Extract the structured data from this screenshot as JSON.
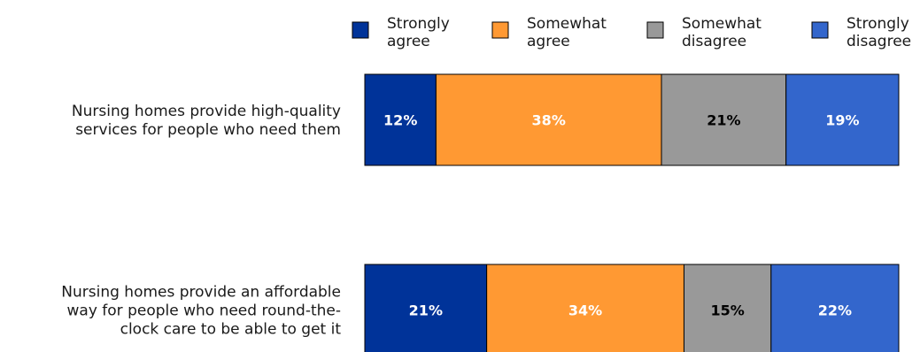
{
  "chart_data": {
    "type": "bar",
    "orientation": "horizontal",
    "stacked": true,
    "unit": "%",
    "categories": [
      [
        "Nursing homes provide high-quality",
        "services for people who need them"
      ],
      [
        "Nursing homes provide an affordable",
        "way for people who need round-the-",
        "clock care to be able to get it"
      ]
    ],
    "series": [
      {
        "name": [
          "Strongly",
          "agree"
        ],
        "color": "#003399",
        "label_color": "#ffffff",
        "values": [
          12,
          21
        ]
      },
      {
        "name": [
          "Somewhat",
          "agree"
        ],
        "color": "#ff9933",
        "label_color": "#ffffff",
        "values": [
          38,
          34
        ]
      },
      {
        "name": [
          "Somewhat",
          "disagree"
        ],
        "color": "#999999",
        "label_color": "#000000",
        "values": [
          21,
          15
        ]
      },
      {
        "name": [
          "Strongly",
          "disagree"
        ],
        "color": "#3366cc",
        "label_color": "#ffffff",
        "values": [
          19,
          22
        ]
      }
    ],
    "legend_position": "top",
    "grid": false
  }
}
